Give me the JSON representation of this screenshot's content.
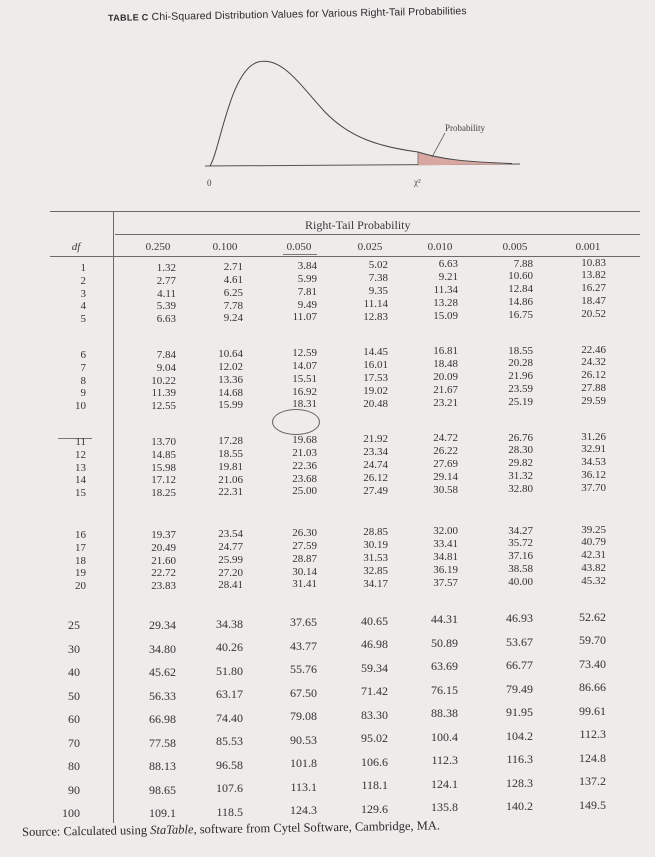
{
  "table": {
    "title_lead": "TABLE C",
    "title_text": "Chi-Squared Distribution Values for Various Right-Tail Probabilities",
    "figure": {
      "zero_label": "0",
      "chi_label": "χ²",
      "probability_label": "Probability"
    },
    "super_header": "Right-Tail Probability",
    "df_header": "df",
    "columns": [
      "0.250",
      "0.100",
      "0.050",
      "0.025",
      "0.010",
      "0.005",
      "0.001"
    ],
    "rows": [
      [
        "1",
        "1.32",
        "2.71",
        "3.84",
        "5.02",
        "6.63",
        "7.88",
        "10.83"
      ],
      [
        "2",
        "2.77",
        "4.61",
        "5.99",
        "7.38",
        "9.21",
        "10.60",
        "13.82"
      ],
      [
        "3",
        "4.11",
        "6.25",
        "7.81",
        "9.35",
        "11.34",
        "12.84",
        "16.27"
      ],
      [
        "4",
        "5.39",
        "7.78",
        "9.49",
        "11.14",
        "13.28",
        "14.86",
        "18.47"
      ],
      [
        "5",
        "6.63",
        "9.24",
        "11.07",
        "12.83",
        "15.09",
        "16.75",
        "20.52"
      ],
      [
        "6",
        "7.84",
        "10.64",
        "12.59",
        "14.45",
        "16.81",
        "18.55",
        "22.46"
      ],
      [
        "7",
        "9.04",
        "12.02",
        "14.07",
        "16.01",
        "18.48",
        "20.28",
        "24.32"
      ],
      [
        "8",
        "10.22",
        "13.36",
        "15.51",
        "17.53",
        "20.09",
        "21.96",
        "26.12"
      ],
      [
        "9",
        "11.39",
        "14.68",
        "16.92",
        "19.02",
        "21.67",
        "23.59",
        "27.88"
      ],
      [
        "10",
        "12.55",
        "15.99",
        "18.31",
        "20.48",
        "23.21",
        "25.19",
        "29.59"
      ],
      [
        "11",
        "13.70",
        "17.28",
        "19.68",
        "21.92",
        "24.72",
        "26.76",
        "31.26"
      ],
      [
        "12",
        "14.85",
        "18.55",
        "21.03",
        "23.34",
        "26.22",
        "28.30",
        "32.91"
      ],
      [
        "13",
        "15.98",
        "19.81",
        "22.36",
        "24.74",
        "27.69",
        "29.82",
        "34.53"
      ],
      [
        "14",
        "17.12",
        "21.06",
        "23.68",
        "26.12",
        "29.14",
        "31.32",
        "36.12"
      ],
      [
        "15",
        "18.25",
        "22.31",
        "25.00",
        "27.49",
        "30.58",
        "32.80",
        "37.70"
      ],
      [
        "16",
        "19.37",
        "23.54",
        "26.30",
        "28.85",
        "32.00",
        "34.27",
        "39.25"
      ],
      [
        "17",
        "20.49",
        "24.77",
        "27.59",
        "30.19",
        "33.41",
        "35.72",
        "40.79"
      ],
      [
        "18",
        "21.60",
        "25.99",
        "28.87",
        "31.53",
        "34.81",
        "37.16",
        "42.31"
      ],
      [
        "19",
        "22.72",
        "27.20",
        "30.14",
        "32.85",
        "36.19",
        "38.58",
        "43.82"
      ],
      [
        "20",
        "23.83",
        "28.41",
        "31.41",
        "34.17",
        "37.57",
        "40.00",
        "45.32"
      ],
      [
        "25",
        "29.34",
        "34.38",
        "37.65",
        "40.65",
        "44.31",
        "46.93",
        "52.62"
      ],
      [
        "30",
        "34.80",
        "40.26",
        "43.77",
        "46.98",
        "50.89",
        "53.67",
        "59.70"
      ],
      [
        "40",
        "45.62",
        "51.80",
        "55.76",
        "59.34",
        "63.69",
        "66.77",
        "73.40"
      ],
      [
        "50",
        "56.33",
        "63.17",
        "67.50",
        "71.42",
        "76.15",
        "79.49",
        "86.66"
      ],
      [
        "60",
        "66.98",
        "74.40",
        "79.08",
        "83.30",
        "88.38",
        "91.95",
        "99.61"
      ],
      [
        "70",
        "77.58",
        "85.53",
        "90.53",
        "95.02",
        "100.4",
        "104.2",
        "112.3"
      ],
      [
        "80",
        "88.13",
        "96.58",
        "101.8",
        "106.6",
        "112.3",
        "116.3",
        "124.8"
      ],
      [
        "90",
        "98.65",
        "107.6",
        "113.1",
        "118.1",
        "124.1",
        "128.3",
        "137.2"
      ],
      [
        "100",
        "109.1",
        "118.5",
        "124.3",
        "129.6",
        "135.8",
        "140.2",
        "149.5"
      ]
    ],
    "source_prefix": "Source: Calculated using ",
    "source_italic": "StaTable",
    "source_suffix": ", software from Cytel Software, Cambridge, MA."
  }
}
